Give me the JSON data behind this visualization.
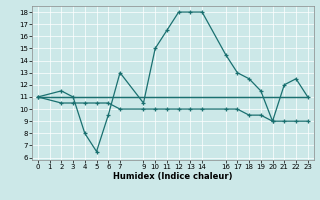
{
  "xlabel": "Humidex (Indice chaleur)",
  "background_color": "#cce8e8",
  "line_color": "#1a7070",
  "xlim": [
    0,
    23
  ],
  "ylim": [
    6,
    18.5
  ],
  "yticks": [
    6,
    7,
    8,
    9,
    10,
    11,
    12,
    13,
    14,
    15,
    16,
    17,
    18
  ],
  "xticks": [
    0,
    1,
    2,
    3,
    4,
    5,
    6,
    7,
    9,
    10,
    11,
    12,
    13,
    14,
    16,
    17,
    18,
    19,
    20,
    21,
    22,
    23
  ],
  "series1_x": [
    0,
    2,
    3,
    4,
    5,
    6,
    7,
    9,
    10,
    11,
    12,
    13,
    14,
    16,
    17,
    18,
    19,
    20,
    21,
    22,
    23
  ],
  "series1_y": [
    11,
    11.5,
    11,
    8,
    6.5,
    9.5,
    13,
    10.5,
    15,
    16.5,
    18,
    18,
    18,
    14.5,
    13,
    12.5,
    11.5,
    9,
    12,
    12.5,
    11
  ],
  "series2_x": [
    0,
    2,
    3,
    4,
    5,
    6,
    7,
    9,
    10,
    11,
    12,
    13,
    14,
    16,
    17,
    18,
    19,
    20,
    21,
    22,
    23
  ],
  "series2_y": [
    11,
    10.5,
    10.5,
    10.5,
    10.5,
    10.5,
    10,
    10,
    10,
    10,
    10,
    10,
    10,
    10,
    10,
    9.5,
    9.5,
    9,
    9,
    9,
    9
  ],
  "series3_x": [
    0,
    23
  ],
  "series3_y": [
    11,
    11
  ],
  "series4_x": [
    0,
    3,
    23
  ],
  "series4_y": [
    11,
    11,
    11
  ]
}
